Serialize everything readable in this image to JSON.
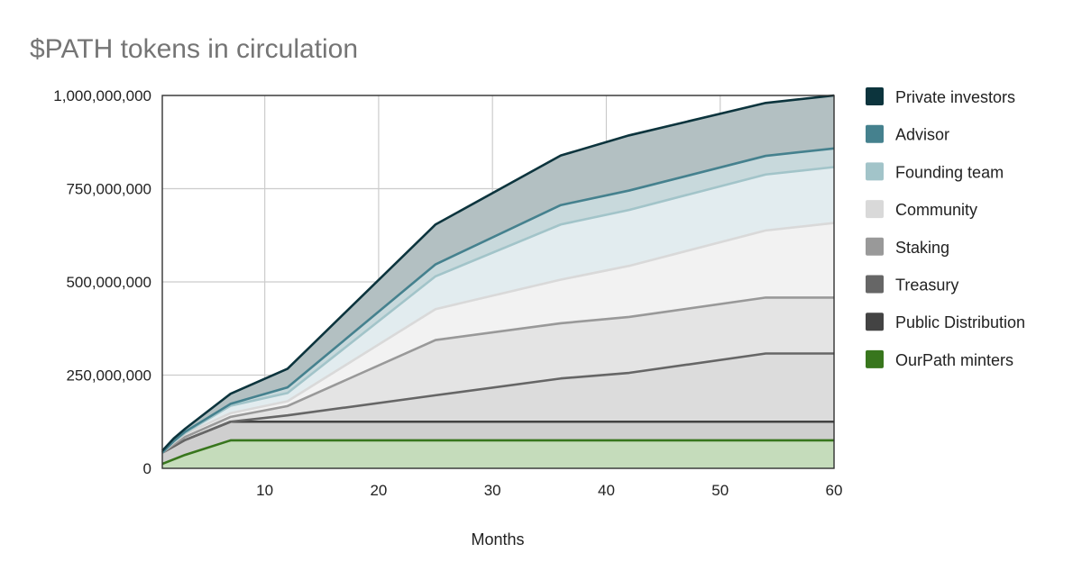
{
  "chart_data": {
    "type": "area",
    "stacked": true,
    "title": "$PATH tokens in circulation",
    "xlabel": "Months",
    "ylabel": "",
    "xlim": [
      1,
      60
    ],
    "ylim": [
      0,
      1000000000
    ],
    "x_ticks": [
      10,
      20,
      30,
      40,
      50,
      60
    ],
    "y_ticks": [
      0,
      250000000,
      500000000,
      750000000,
      1000000000
    ],
    "y_tick_labels": [
      "0",
      "250,000,000",
      "500,000,000",
      "750,000,000",
      "1,000,000,000"
    ],
    "legend_position": "right",
    "x": [
      1,
      2,
      3,
      7,
      12,
      25,
      36,
      42,
      54,
      60
    ],
    "series": [
      {
        "name": "OurPath minters",
        "color": "#38761d",
        "fill": "#c5dcbb",
        "values": [
          12000000,
          24000000,
          36000000,
          75000000,
          75000000,
          75000000,
          75000000,
          75000000,
          75000000,
          75000000
        ]
      },
      {
        "name": "Public Distribution",
        "color": "#434343",
        "fill": "#cfcfcf",
        "values": [
          30000000,
          35000000,
          40000000,
          50000000,
          50000000,
          50000000,
          50000000,
          50000000,
          50000000,
          50000000
        ]
      },
      {
        "name": "Treasury",
        "color": "#666666",
        "fill": "#dcdcdc",
        "values": [
          0,
          0,
          0,
          0,
          17000000,
          71000000,
          116000000,
          131000000,
          183000000,
          183000000
        ]
      },
      {
        "name": "Staking",
        "color": "#999999",
        "fill": "#e4e4e4",
        "values": [
          0,
          5000000,
          8000000,
          13000000,
          25000000,
          148000000,
          148000000,
          150000000,
          150000000,
          150000000
        ]
      },
      {
        "name": "Community",
        "color": "#d9d9d9",
        "fill": "#f2f2f2",
        "values": [
          0,
          5000000,
          8000000,
          10000000,
          13000000,
          83000000,
          117000000,
          137000000,
          180000000,
          200000000
        ]
      },
      {
        "name": "Founding team",
        "color": "#a2c4c9",
        "fill": "#e2ecef",
        "values": [
          0,
          2000000,
          3000000,
          20000000,
          22000000,
          88000000,
          148000000,
          150000000,
          150000000,
          150000000
        ]
      },
      {
        "name": "Advisor",
        "color": "#45818e",
        "fill": "#c8d9dc",
        "values": [
          0,
          2000000,
          3000000,
          5000000,
          15000000,
          32000000,
          52000000,
          52000000,
          50000000,
          50000000
        ]
      },
      {
        "name": "Private investors",
        "color": "#0c343d",
        "fill": "#b3c0c2",
        "values": [
          5000000,
          7000000,
          8000000,
          27000000,
          50000000,
          107000000,
          133000000,
          148000000,
          142000000,
          142000000
        ]
      }
    ]
  }
}
